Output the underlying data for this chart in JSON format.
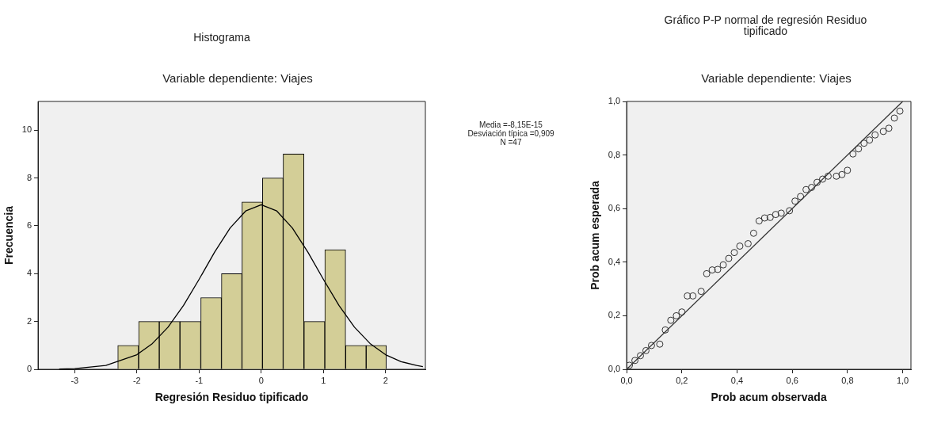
{
  "chart_data": [
    {
      "type": "histogram",
      "title": "Histograma",
      "subtitle": "Variable dependiente: Viajes",
      "xlabel": "Regresión Residuo tipificado",
      "ylabel": "Frecuencia",
      "bins": [
        -2.31,
        -1.97,
        -1.64,
        -1.31,
        -0.97,
        -0.64,
        -0.31,
        0.02,
        0.35,
        0.69,
        1.02,
        1.36,
        1.69,
        2.01
      ],
      "values": [
        1,
        2,
        2,
        2,
        3,
        4,
        7,
        8,
        9,
        2,
        5,
        1,
        1
      ],
      "color": "#d3ce97",
      "series": [
        {
          "type": "line",
          "color": "#000000",
          "x": [
            -3.25,
            -3,
            -2.5,
            -2,
            -1.75,
            -1.5,
            -1.25,
            -1,
            -0.75,
            -0.5,
            -0.25,
            0,
            0.25,
            0.5,
            0.75,
            1,
            1.25,
            1.5,
            1.75,
            2,
            2.25,
            2.5,
            2.6
          ],
          "values": [
            0.01,
            0.03,
            0.16,
            0.61,
            1.08,
            1.76,
            2.67,
            3.76,
            4.9,
            5.91,
            6.62,
            6.88,
            6.62,
            5.91,
            4.9,
            3.76,
            2.67,
            1.76,
            1.08,
            0.61,
            0.32,
            0.16,
            0.11
          ]
        }
      ],
      "xlim": [
        -3.59,
        2.64
      ],
      "xticks": [
        -3,
        -2,
        -1,
        0,
        1,
        2
      ],
      "ylim": [
        0,
        11.2
      ],
      "yticks": [
        0,
        2,
        4,
        6,
        8,
        10
      ],
      "annotations": [
        "Media =-8,15E-15",
        "Desviación típica =0,909",
        "N =47"
      ],
      "grid": false,
      "legend": false
    },
    {
      "type": "scatter",
      "title": "Gráfico P-P normal de regresión Residuo tipificado",
      "subtitle": "Variable dependiente: Viajes",
      "xlabel": "Prob acum observada",
      "ylabel": "Prob acum esperada",
      "series": [
        {
          "type": "scatter",
          "color": "#333333",
          "marker": "circle",
          "x": [
            0.01,
            0.03,
            0.05,
            0.07,
            0.09,
            0.12,
            0.14,
            0.16,
            0.18,
            0.2,
            0.22,
            0.24,
            0.27,
            0.29,
            0.31,
            0.33,
            0.35,
            0.37,
            0.39,
            0.41,
            0.44,
            0.46,
            0.48,
            0.5,
            0.52,
            0.54,
            0.56,
            0.59,
            0.61,
            0.63,
            0.65,
            0.67,
            0.69,
            0.71,
            0.73,
            0.76,
            0.78,
            0.8,
            0.82,
            0.84,
            0.86,
            0.88,
            0.9,
            0.93,
            0.95,
            0.97,
            0.99
          ],
          "values": [
            0.015,
            0.033,
            0.051,
            0.07,
            0.089,
            0.094,
            0.147,
            0.183,
            0.2,
            0.214,
            0.274,
            0.274,
            0.291,
            0.357,
            0.371,
            0.373,
            0.39,
            0.414,
            0.436,
            0.46,
            0.469,
            0.508,
            0.554,
            0.565,
            0.567,
            0.578,
            0.583,
            0.592,
            0.628,
            0.645,
            0.671,
            0.679,
            0.698,
            0.71,
            0.721,
            0.721,
            0.727,
            0.743,
            0.804,
            0.823,
            0.844,
            0.856,
            0.875,
            0.888,
            0.9,
            0.938,
            0.964
          ]
        },
        {
          "type": "line",
          "color": "#333333",
          "marker": "none",
          "x": [
            0,
            1
          ],
          "values": [
            0,
            1
          ]
        }
      ],
      "xlim": [
        0,
        1.03
      ],
      "xticks": [
        {
          "value": 0,
          "label": "0,0"
        },
        {
          "value": 0.2,
          "label": "0,2"
        },
        {
          "value": 0.4,
          "label": "0,4"
        },
        {
          "value": 0.6,
          "label": "0,6"
        },
        {
          "value": 0.8,
          "label": "0,8"
        },
        {
          "value": 1,
          "label": "1,0"
        }
      ],
      "ylim": [
        0,
        1
      ],
      "yticks": [
        {
          "value": 0,
          "label": "0,0"
        },
        {
          "value": 0.2,
          "label": "0,2"
        },
        {
          "value": 0.4,
          "label": "0,4"
        },
        {
          "value": 0.6,
          "label": "0,6"
        },
        {
          "value": 0.8,
          "label": "0,8"
        },
        {
          "value": 1,
          "label": "1,0"
        }
      ],
      "grid": false,
      "legend": false
    }
  ]
}
